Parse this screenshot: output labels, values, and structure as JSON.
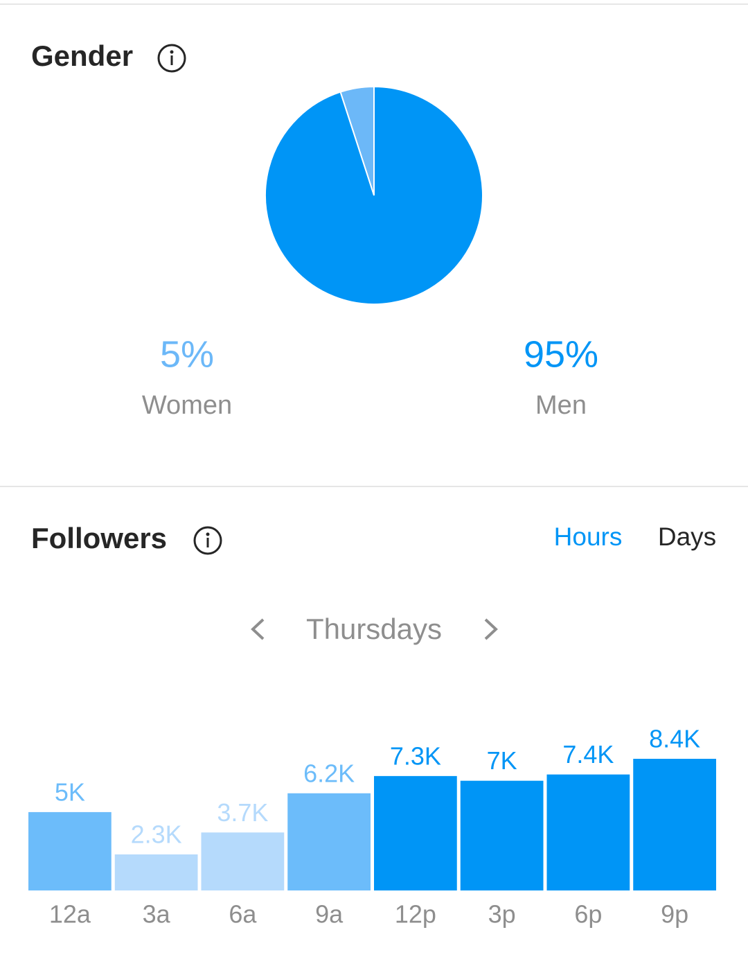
{
  "chart_data": [
    {
      "type": "pie",
      "title": "Gender",
      "categories": [
        "Women",
        "Men"
      ],
      "values": [
        5,
        95
      ],
      "value_labels": [
        "5%",
        "95%"
      ],
      "colors": [
        "#6cb8f8",
        "#0095f6"
      ]
    },
    {
      "type": "bar",
      "title": "Followers",
      "categories": [
        "12a",
        "3a",
        "6a",
        "9a",
        "12p",
        "3p",
        "6p",
        "9p"
      ],
      "values": [
        5000,
        2300,
        3700,
        6200,
        7300,
        7000,
        7400,
        8400
      ],
      "value_labels": [
        "5K",
        "2.3K",
        "3.7K",
        "6.2K",
        "7.3K",
        "7K",
        "7.4K",
        "8.4K"
      ],
      "colors": [
        "#6cbcfa",
        "#b5dafc",
        "#b5dafc",
        "#6cbcfa",
        "#0095f6",
        "#0095f6",
        "#0095f6",
        "#0095f6"
      ]
    }
  ],
  "tabs": [
    "Hours",
    "Days"
  ],
  "period": "Thursdays"
}
